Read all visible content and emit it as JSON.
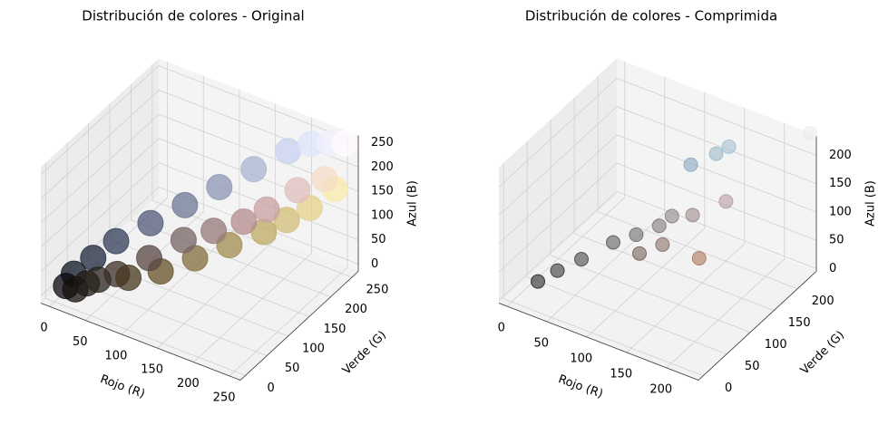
{
  "chart_data": [
    {
      "type": "scatter3d",
      "title": "Distribución de colores - Original",
      "xlabel": "Rojo (R)",
      "ylabel": "Verde (G)",
      "zlabel": "Azul (B)",
      "xlim": [
        -12,
        265
      ],
      "ylim": [
        -12,
        265
      ],
      "zlim": [
        -15,
        265
      ],
      "xticks": [
        0,
        50,
        100,
        150,
        200,
        250
      ],
      "yticks": [
        0,
        50,
        100,
        150,
        200,
        250
      ],
      "zticks": [
        0,
        50,
        100,
        150,
        200,
        250
      ],
      "x": [
        10,
        20,
        15,
        30,
        40,
        30,
        50,
        60,
        70,
        80,
        90,
        100,
        110,
        120,
        130,
        140,
        150,
        160,
        170,
        180,
        190,
        200,
        200,
        210,
        220,
        225,
        230,
        240,
        245,
        250,
        255
      ],
      "y": [
        10,
        15,
        20,
        25,
        35,
        40,
        60,
        45,
        55,
        90,
        70,
        80,
        120,
        100,
        110,
        150,
        120,
        140,
        180,
        140,
        170,
        210,
        160,
        190,
        230,
        190,
        210,
        240,
        220,
        235,
        250
      ],
      "z": [
        15,
        10,
        35,
        20,
        25,
        60,
        90,
        40,
        30,
        120,
        70,
        40,
        150,
        100,
        60,
        180,
        120,
        80,
        210,
        140,
        100,
        240,
        160,
        120,
        250,
        190,
        140,
        255,
        200,
        170,
        255
      ]
    },
    {
      "type": "scatter3d",
      "title": "Distribución de colores - Comprimida",
      "xlabel": "Rojo (R)",
      "ylabel": "Verde (G)",
      "zlabel": "Azul (B)",
      "xlim": [
        -10,
        240
      ],
      "ylim": [
        -10,
        240
      ],
      "zlim": [
        -5,
        235
      ],
      "xticks": [
        0,
        50,
        100,
        150,
        200
      ],
      "yticks": [
        0,
        50,
        100,
        150,
        200
      ],
      "zticks": [
        0,
        50,
        100,
        150,
        200
      ],
      "x": [
        20,
        35,
        55,
        80,
        110,
        100,
        130,
        120,
        170,
        130,
        150,
        180,
        150,
        130,
        160,
        235
      ],
      "y": [
        22,
        38,
        55,
        80,
        85,
        95,
        100,
        110,
        110,
        120,
        130,
        150,
        180,
        160,
        190,
        235
      ],
      "z": [
        25,
        40,
        58,
        82,
        75,
        95,
        90,
        110,
        80,
        125,
        130,
        155,
        200,
        185,
        210,
        240
      ]
    }
  ]
}
